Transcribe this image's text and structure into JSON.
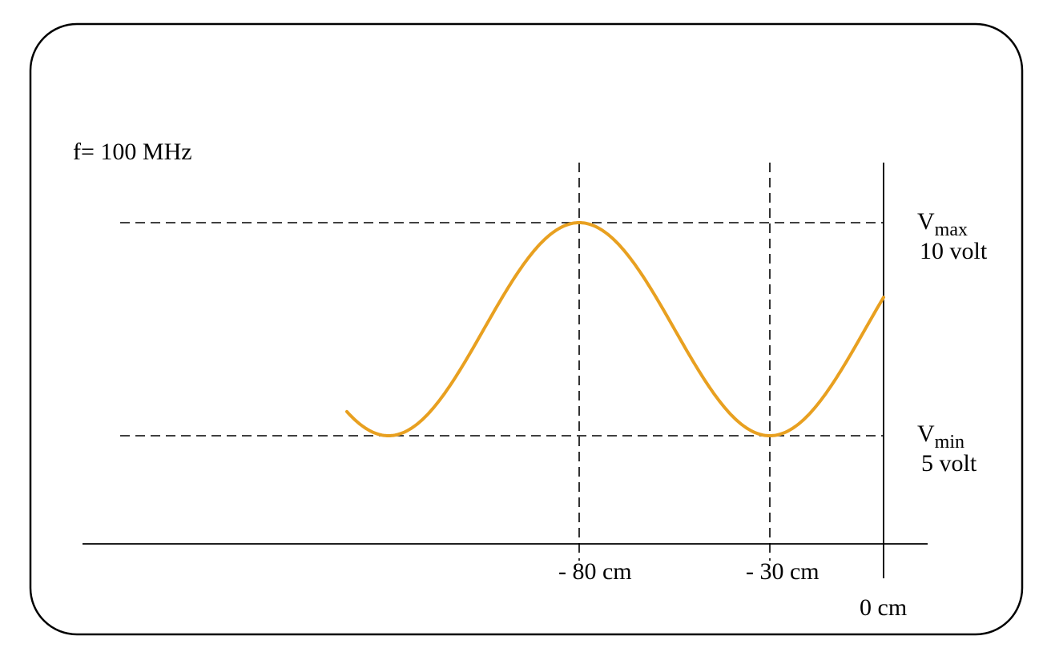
{
  "frequency_label": "f= 100 MHz",
  "vmax": {
    "symbol": "V",
    "subscript": "max",
    "value_label": "10 volt"
  },
  "vmin": {
    "symbol": "V",
    "subscript": "min",
    "value_label": "5 volt"
  },
  "position_labels": {
    "max_position": "- 80 cm",
    "min_position": "- 30 cm",
    "load_position": "0 cm"
  },
  "colors": {
    "wave": "#E8A020",
    "lines": "#000000",
    "background": "#ffffff"
  }
}
